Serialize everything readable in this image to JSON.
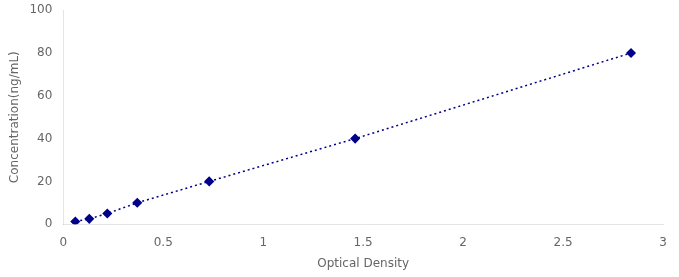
{
  "chart_data": {
    "type": "line",
    "x": [
      0.06,
      0.13,
      0.22,
      0.37,
      0.73,
      1.46,
      2.84
    ],
    "values": [
      1.25,
      2.5,
      5.0,
      10.0,
      20.0,
      40.0,
      80.0
    ],
    "color": "#00008B",
    "marker": "diamond",
    "line_style": "dotted",
    "xlabel": "Optical Density",
    "ylabel": "Concentration(ng/mL)",
    "xlim": [
      0,
      3.0
    ],
    "ylim": [
      0,
      100
    ],
    "xticks": [
      0,
      0.5,
      1,
      1.5,
      2,
      2.5,
      3
    ],
    "yticks": [
      0,
      20,
      40,
      60,
      80,
      100
    ],
    "grid": false
  }
}
